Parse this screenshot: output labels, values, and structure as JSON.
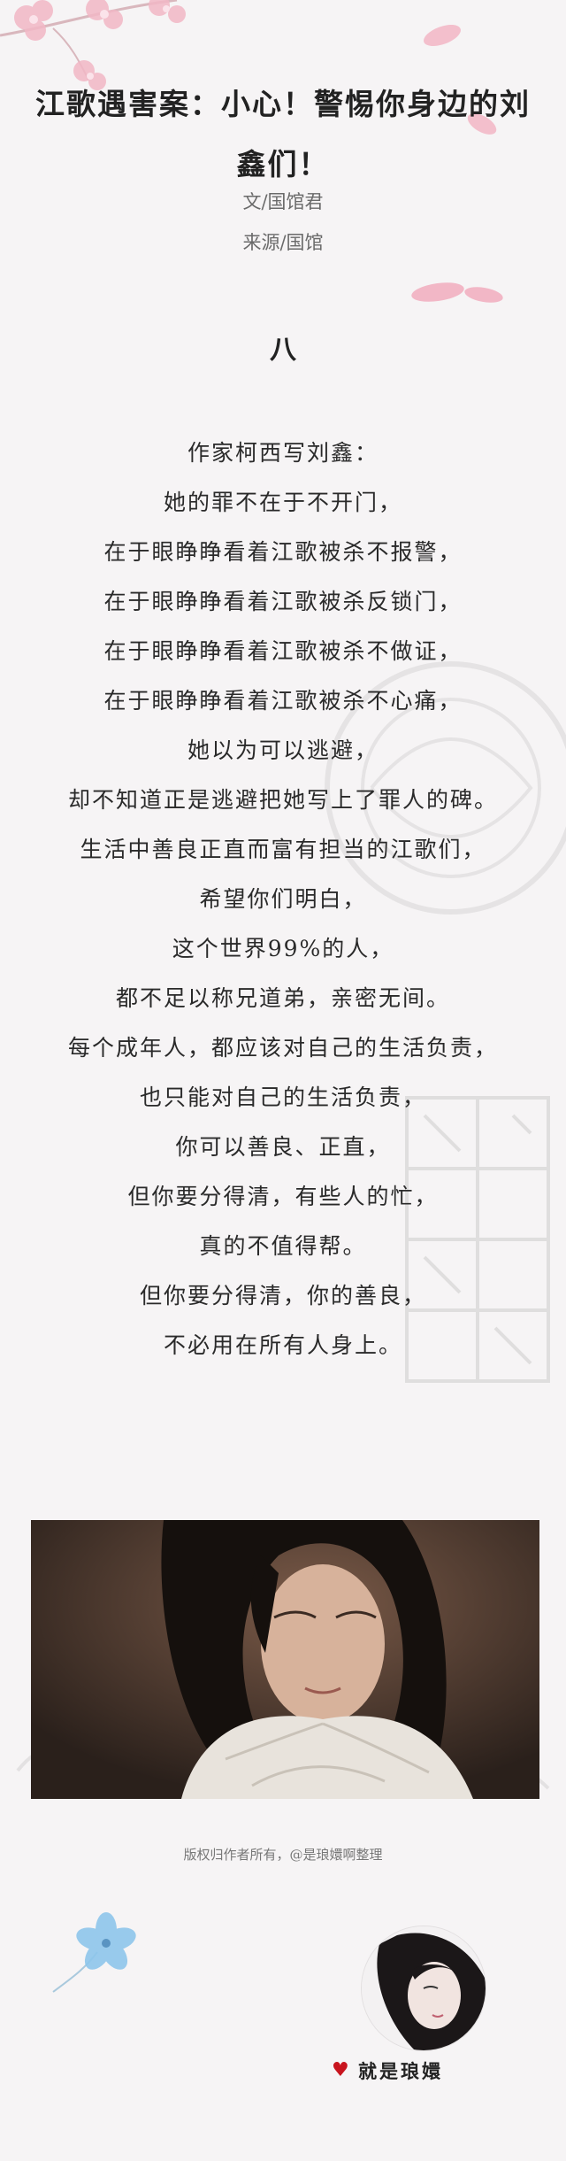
{
  "article": {
    "title": "江歌遇害案：小心！警惕你身边的刘鑫们！",
    "author": "文/国馆君",
    "source": "来源/国馆",
    "section_number": "八",
    "lines": [
      "作家柯西写刘鑫：",
      "她的罪不在于不开门，",
      "在于眼睁睁看着江歌被杀不报警，",
      "在于眼睁睁看着江歌被杀反锁门，",
      "在于眼睁睁看着江歌被杀不做证，",
      "在于眼睁睁看着江歌被杀不心痛，",
      "她以为可以逃避，",
      "却不知道正是逃避把她写上了罪人的碑。",
      "生活中善良正直而富有担当的江歌们，",
      "希望你们明白，",
      "这个世界99%的人，",
      "都不足以称兄道弟，亲密无间。",
      "每个成年人，都应该对自己的生活负责，",
      "也只能对自己的生活负责，",
      "你可以善良、正直，",
      "但你要分得清，有些人的忙，",
      "真的不值得帮。",
      "但你要分得清，你的善良，",
      "不必用在所有人身上。"
    ]
  },
  "caption": "版权归作者所有，@是琅嬛啊整理",
  "signature": {
    "text": "就是琅嬛",
    "heart_icon": "heart-icon"
  },
  "colors": {
    "background": "#f6f4f5",
    "blossom": "#f2b7c6",
    "heart": "#c8141e",
    "flower": "#8ec6ec"
  }
}
